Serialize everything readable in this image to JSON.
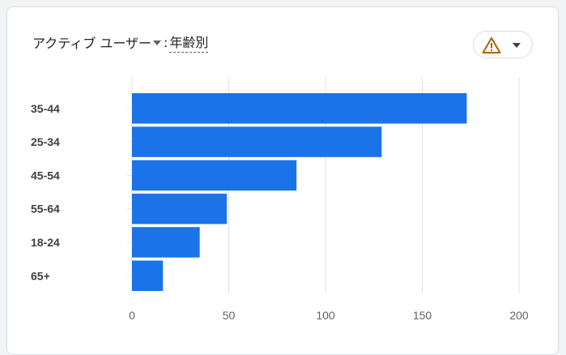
{
  "header": {
    "metric": "アクティブ ユーザー",
    "separator": ":",
    "dimension": "年齢別"
  },
  "colors": {
    "bar": "#1a73e8",
    "grid": "#e0e0e0",
    "warning": "#b06000"
  },
  "icons": {
    "warning": "warning-triangle-icon",
    "dropdown": "chevron-down-icon"
  },
  "chart_data": {
    "type": "bar",
    "orientation": "horizontal",
    "title": "",
    "xlabel": "",
    "ylabel": "",
    "categories": [
      "35-44",
      "25-34",
      "45-54",
      "55-64",
      "18-24",
      "65+"
    ],
    "values": [
      173,
      129,
      85,
      49,
      35,
      16
    ],
    "xlim": [
      0,
      200
    ],
    "xticks": [
      0,
      50,
      100,
      150,
      200
    ],
    "grid": true,
    "legend": "none"
  }
}
